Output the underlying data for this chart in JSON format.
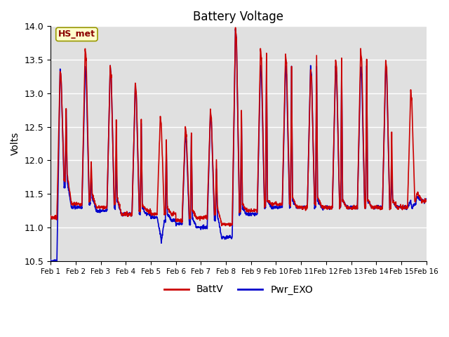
{
  "title": "Battery Voltage",
  "ylabel": "Volts",
  "ylim": [
    10.5,
    14.0
  ],
  "yticks": [
    10.5,
    11.0,
    11.5,
    12.0,
    12.5,
    13.0,
    13.5,
    14.0
  ],
  "xtick_labels": [
    "Feb 1",
    "Feb 2",
    "Feb 3",
    "Feb 4",
    "Feb 5",
    "Feb 6",
    "Feb 7",
    "Feb 8",
    "Feb 9",
    "Feb 10",
    "Feb 11",
    "Feb 12",
    "Feb 13",
    "Feb 14",
    "Feb 15",
    "Feb 16"
  ],
  "color_batt": "#cc0000",
  "color_pwr": "#0000cc",
  "legend_label_batt": "BattV",
  "legend_label_pwr": "Pwr_EXO",
  "annotation_text": "HS_met",
  "annotation_color": "#8b0000",
  "annotation_bg": "#ffffcc",
  "background_color": "#e0e0e0",
  "title_fontsize": 12,
  "axis_label_fontsize": 10,
  "linewidth": 1.2
}
